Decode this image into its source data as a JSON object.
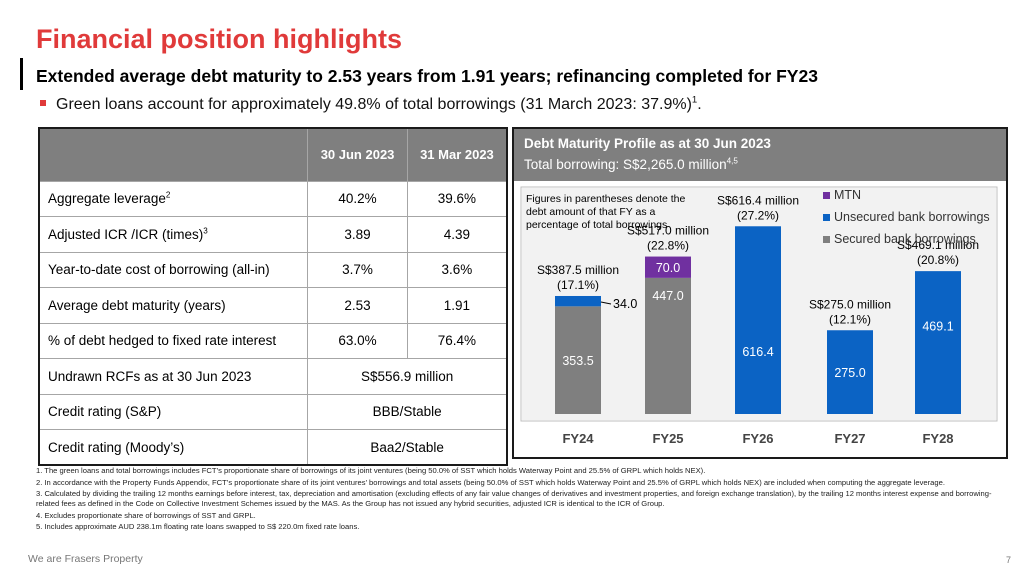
{
  "title": "Financial position highlights",
  "subtitle": "Extended average debt maturity to 2.53 years from 1.91 years; refinancing completed for FY23",
  "bullet": {
    "text": "Green loans account for approximately 49.8% of total borrowings (31 March 2023: 37.9%)",
    "sup": "1",
    "end": "."
  },
  "table": {
    "headers": [
      "30 Jun 2023",
      "31 Mar 2023"
    ],
    "rows": [
      {
        "label": "Aggregate leverage",
        "sup": "2",
        "v1": "40.2%",
        "v2": "39.6%"
      },
      {
        "label": "Adjusted ICR /ICR (times)",
        "sup": "3",
        "v1": "3.89",
        "v2": "4.39"
      },
      {
        "label": "Year-to-date cost of borrowing (all-in)",
        "sup": "",
        "v1": "3.7%",
        "v2": "3.6%"
      },
      {
        "label": "Average debt maturity (years)",
        "sup": "",
        "v1": "2.53",
        "v2": "1.91"
      },
      {
        "label": "% of debt hedged to fixed rate interest",
        "sup": "",
        "v1": "63.0%",
        "v2": "76.4%"
      }
    ],
    "span_rows": [
      {
        "label": "Undrawn RCFs as at 30 Jun 2023",
        "value": "S$556.9 million"
      },
      {
        "label": "Credit rating (S&P)",
        "value": "BBB/Stable"
      },
      {
        "label": "Credit rating (Moody’s)",
        "value": "Baa2/Stable"
      }
    ]
  },
  "chart_panel": {
    "title": "Debt Maturity Profile as at 30 Jun 2023",
    "subtitle": "Total borrowing: S$2,265.0 million",
    "subtitle_sup": "4,5"
  },
  "chart_data": {
    "type": "bar",
    "stacked": true,
    "categories": [
      "FY24",
      "FY25",
      "FY26",
      "FY27",
      "FY28"
    ],
    "series": [
      {
        "name": "Secured bank borrowings",
        "color": "#7f7f7f",
        "values": [
          353.5,
          447.0,
          0,
          0,
          0
        ]
      },
      {
        "name": "Unsecured bank borrowings",
        "color": "#0b63c4",
        "values": [
          34.0,
          0,
          616.4,
          275.0,
          469.1
        ]
      },
      {
        "name": "MTN",
        "color": "#7030a0",
        "values": [
          0,
          70.0,
          0,
          0,
          0
        ]
      }
    ],
    "legend_order": [
      "MTN",
      "Unsecured bank borrowings",
      "Secured bank borrowings"
    ],
    "legend_position": "top-right",
    "totals": [
      {
        "line1": "S$387.5 million",
        "line2": "(17.1%)"
      },
      {
        "line1": "S$517.0 million",
        "line2": "(22.8%)"
      },
      {
        "line1": "S$616.4 million",
        "line2": "(27.2%)"
      },
      {
        "line1": "S$275.0 million",
        "line2": "(12.1%)"
      },
      {
        "line1": "S$469.1 million",
        "line2": "(20.8%)"
      }
    ],
    "note": [
      "Figures in parentheses denote the",
      "debt amount of that FY as a",
      "percentage of total borrowings"
    ],
    "ylim": [
      0,
      660
    ],
    "grid": false
  },
  "footnotes": [
    "1.  The green loans and total borrowings includes FCT’s proportionate share of borrowings of its joint ventures (being 50.0% of SST which holds Waterway Point and 25.5% of GRPL which holds NEX).",
    "2.  In accordance with the Property Funds Appendix, FCT’s proportionate share of its joint ventures’ borrowings and total assets (being 50.0% of SST which holds Waterway Point and 25.5% of GRPL which holds NEX) are included when computing the aggregate leverage.",
    "3.  Calculated by dividing the trailing 12 months earnings before interest, tax, depreciation and amortisation (excluding effects of any fair value changes of derivatives and investment properties, and foreign exchange translation), by the trailing 12 months interest expense and borrowing-related fees as defined in the Code on Collective Investment Schemes issued by the MAS.  As the Group has not issued any hybrid securities, adjusted ICR is identical to the ICR of Group.",
    "4.  Excludes proportionate share of borrowings of SST and GRPL.",
    "5.  Includes approximate AUD 238.1m floating rate loans swapped to S$ 220.0m fixed rate loans."
  ],
  "footer": "We are Frasers Property",
  "page_number": "7"
}
